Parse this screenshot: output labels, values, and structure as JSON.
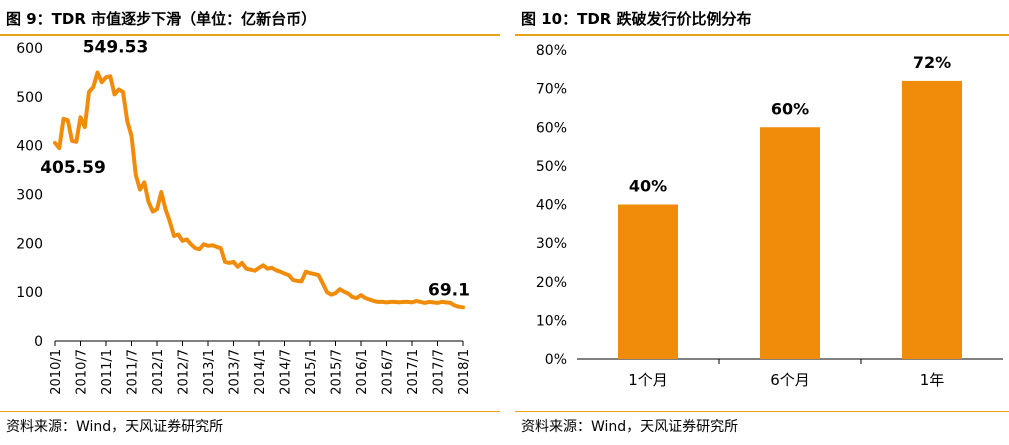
{
  "left": {
    "title": "图 9：TDR 市值逐步下滑（单位：亿新台币）",
    "source": "资料来源：Wind，天风证券研究所",
    "chart_data": {
      "type": "line",
      "title": "图 9：TDR 市值逐步下滑（单位：亿新台币）",
      "unit": "亿新台币",
      "color": "#f08c0a",
      "ylim": [
        0,
        600
      ],
      "yticks": [
        0,
        100,
        200,
        300,
        400,
        500,
        600
      ],
      "ytick_labels": [
        "0",
        "100",
        "200",
        "300",
        "400",
        "500",
        "600"
      ],
      "xlim": [
        0,
        96
      ],
      "xtick_positions": [
        0,
        6,
        12,
        18,
        24,
        30,
        36,
        42,
        48,
        54,
        60,
        66,
        72,
        78,
        84,
        90,
        96
      ],
      "xtick_labels": [
        "2010/1",
        "2010/7",
        "2011/1",
        "2011/7",
        "2012/1",
        "2012/7",
        "2013/1",
        "2013/7",
        "2014/1",
        "2014/7",
        "2015/1",
        "2015/7",
        "2016/1",
        "2016/7",
        "2017/1",
        "2017/7",
        "2018/1"
      ],
      "series": [
        {
          "values": [
            405.59,
            395,
            455,
            452,
            410,
            408,
            458,
            438,
            510,
            520,
            549.53,
            530,
            540,
            542,
            505,
            515,
            510,
            450,
            420,
            340,
            310,
            325,
            285,
            265,
            270,
            305,
            270,
            245,
            215,
            218,
            205,
            208,
            198,
            190,
            188,
            198,
            195,
            196,
            193,
            190,
            162,
            160,
            162,
            152,
            160,
            148,
            146,
            144,
            150,
            155,
            148,
            150,
            145,
            142,
            138,
            135,
            125,
            123,
            122,
            142,
            139,
            137,
            135,
            118,
            100,
            95,
            98,
            106,
            101,
            97,
            90,
            88,
            94,
            88,
            85,
            82,
            80,
            80,
            79,
            80,
            80,
            79,
            80,
            80,
            79,
            82,
            80,
            78,
            80,
            79,
            78,
            80,
            79,
            78,
            73,
            70,
            69.1
          ]
        }
      ],
      "annotations": [
        {
          "label": "405.59",
          "x": 0,
          "y": 405.59
        },
        {
          "label": "549.53",
          "x": 10,
          "y": 549.53
        },
        {
          "label": "69.1",
          "x": 96,
          "y": 69.1
        }
      ]
    }
  },
  "right": {
    "title": "图 10：TDR 跌破发行价比例分布",
    "source": "资料来源：Wind，天风证券研究所",
    "chart_data": {
      "type": "bar",
      "title": "图 10：TDR 跌破发行价比例分布",
      "color": "#f08c0a",
      "categories": [
        "1个月",
        "6个月",
        "1年"
      ],
      "values": [
        40,
        60,
        72
      ],
      "value_labels": [
        "40%",
        "60%",
        "72%"
      ],
      "ylim": [
        0,
        80
      ],
      "yticks": [
        0,
        10,
        20,
        30,
        40,
        50,
        60,
        70,
        80
      ],
      "ytick_labels": [
        "0%",
        "10%",
        "20%",
        "30%",
        "40%",
        "50%",
        "60%",
        "70%",
        "80%"
      ]
    }
  }
}
